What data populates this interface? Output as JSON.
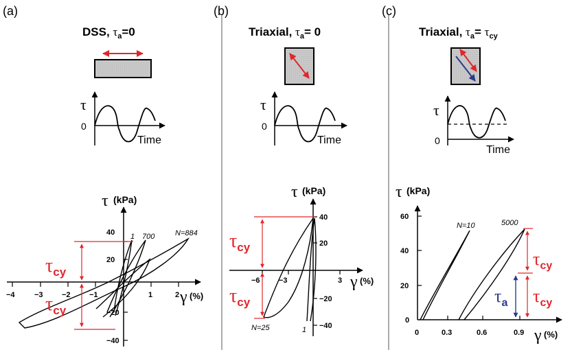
{
  "panels": [
    {
      "letter": "(a)",
      "title_main": "DSS, ",
      "title_tau": "τ",
      "title_sub": "a",
      "title_tail": "=0",
      "wave": {
        "tau": "τ",
        "zero": "0",
        "time": "Time"
      },
      "plot": {
        "tau": "τ",
        "unit": " (kPa)",
        "gamma": "γ",
        "gamma_unit": " (%)",
        "x_ticks": [
          "−4",
          "−3",
          "−2",
          "−1",
          "1",
          "2"
        ],
        "y_ticks": [
          "40",
          "20",
          "−20",
          "−40"
        ],
        "curve_labels": [
          "1",
          "700",
          "N=884"
        ],
        "tau_cy": "τ",
        "cy": "cy"
      }
    },
    {
      "letter": "(b)",
      "title_main": "Triaxial, ",
      "title_tau": "τ",
      "title_sub": "a",
      "title_tail": "= 0",
      "wave": {
        "tau": "τ",
        "zero": "0",
        "time": "Time"
      },
      "plot": {
        "tau": "τ",
        "unit": " (kPa)",
        "gamma": "γ",
        "gamma_unit": " (%)",
        "x_ticks": [
          "−6",
          "−3",
          "3"
        ],
        "y_ticks": [
          "40",
          "20",
          "−20",
          "−40"
        ],
        "curve_labels": [
          "N=25",
          "1"
        ],
        "tau_cy": "τ",
        "cy": "cy"
      }
    },
    {
      "letter": "(c)",
      "title_main": "Triaxial, ",
      "title_tau": "τ",
      "title_sub": "a",
      "title_tail": "= ",
      "title_tau2": "τ",
      "title_sub2": "cy",
      "wave": {
        "tau": "τ",
        "zero": "0",
        "time": "Time"
      },
      "plot": {
        "tau": "τ",
        "unit": " (kPa)",
        "gamma": "γ",
        "gamma_unit": " (%)",
        "x_ticks": [
          "0",
          "0.3",
          "0.6",
          "0.9"
        ],
        "y_ticks": [
          "60",
          "40",
          "20",
          "0"
        ],
        "curve_labels": [
          "N=10",
          "5000"
        ],
        "tau_cy": "τ",
        "cy": "cy",
        "tau_a": "τ",
        "a": "a"
      }
    }
  ],
  "colors": {
    "red": "#e0262c",
    "blue": "#2a3a8c",
    "box": "#c8c8c8"
  }
}
